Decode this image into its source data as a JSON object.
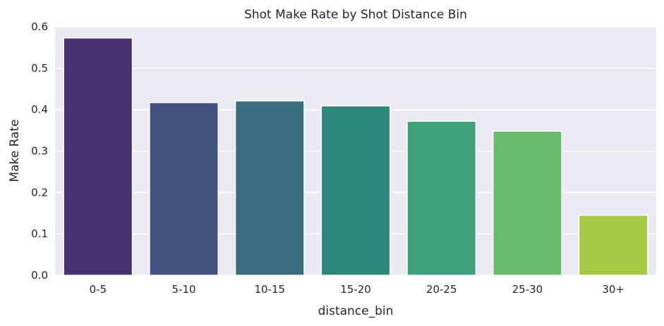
{
  "chart_data": {
    "type": "bar",
    "title": "Shot Make Rate by Shot Distance Bin",
    "xlabel": "distance_bin",
    "ylabel": "Make Rate",
    "categories": [
      "0-5",
      "5-10",
      "10-15",
      "15-20",
      "20-25",
      "25-30",
      "30+"
    ],
    "values": [
      0.573,
      0.417,
      0.421,
      0.409,
      0.372,
      0.348,
      0.145
    ],
    "ylim": [
      0,
      0.6
    ],
    "yticks": [
      0.0,
      0.1,
      0.2,
      0.3,
      0.4,
      0.5,
      0.6
    ],
    "ytick_labels": [
      "0.0",
      "0.1",
      "0.2",
      "0.3",
      "0.4",
      "0.5",
      "0.6"
    ],
    "grid": true,
    "colors": [
      "#48316f",
      "#435381",
      "#386d80",
      "#2d877d",
      "#3ca27a",
      "#69bb6b",
      "#a4c944"
    ],
    "plot_background": "#eaeaf2",
    "grid_color": "#ffffff"
  }
}
